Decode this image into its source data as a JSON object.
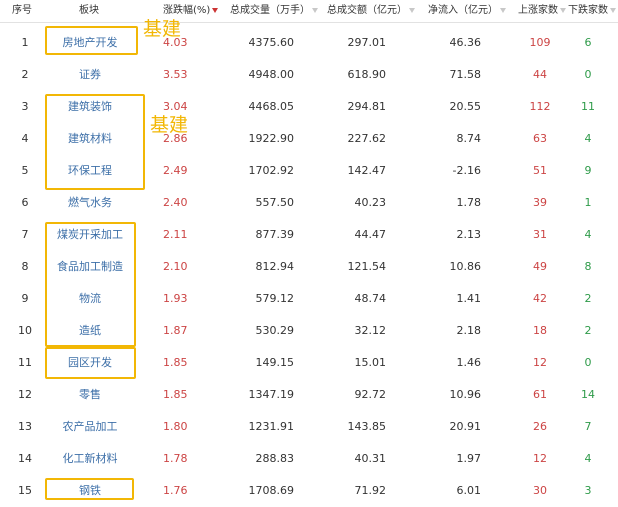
{
  "header": {
    "idx": "序号",
    "name": "板块",
    "chg": "涨跌幅(%)",
    "vol": "总成交量（万手）",
    "amt": "总成交额（亿元）",
    "flow": "净流入（亿元）",
    "up": "上涨家数",
    "down": "下跌家数"
  },
  "rows": [
    {
      "idx": "1",
      "name": "房地产开发",
      "chg": "4.03",
      "vol": "4375.60",
      "amt": "297.01",
      "flow": "46.36",
      "up": "109",
      "down": "6"
    },
    {
      "idx": "2",
      "name": "证券",
      "chg": "3.53",
      "vol": "4948.00",
      "amt": "618.90",
      "flow": "71.58",
      "up": "44",
      "down": "0"
    },
    {
      "idx": "3",
      "name": "建筑装饰",
      "chg": "3.04",
      "vol": "4468.05",
      "amt": "294.81",
      "flow": "20.55",
      "up": "112",
      "down": "11"
    },
    {
      "idx": "4",
      "name": "建筑材料",
      "chg": "2.86",
      "vol": "1922.90",
      "amt": "227.62",
      "flow": "8.74",
      "up": "63",
      "down": "4"
    },
    {
      "idx": "5",
      "name": "环保工程",
      "chg": "2.49",
      "vol": "1702.92",
      "amt": "142.47",
      "flow": "-2.16",
      "up": "51",
      "down": "9"
    },
    {
      "idx": "6",
      "name": "燃气水务",
      "chg": "2.40",
      "vol": "557.50",
      "amt": "40.23",
      "flow": "1.78",
      "up": "39",
      "down": "1"
    },
    {
      "idx": "7",
      "name": "煤炭开采加工",
      "chg": "2.11",
      "vol": "877.39",
      "amt": "44.47",
      "flow": "2.13",
      "up": "31",
      "down": "4"
    },
    {
      "idx": "8",
      "name": "食品加工制造",
      "chg": "2.10",
      "vol": "812.94",
      "amt": "121.54",
      "flow": "10.86",
      "up": "49",
      "down": "8"
    },
    {
      "idx": "9",
      "name": "物流",
      "chg": "1.93",
      "vol": "579.12",
      "amt": "48.74",
      "flow": "1.41",
      "up": "42",
      "down": "2"
    },
    {
      "idx": "10",
      "name": "造纸",
      "chg": "1.87",
      "vol": "530.29",
      "amt": "32.12",
      "flow": "2.18",
      "up": "18",
      "down": "2"
    },
    {
      "idx": "11",
      "name": "园区开发",
      "chg": "1.85",
      "vol": "149.15",
      "amt": "15.01",
      "flow": "1.46",
      "up": "12",
      "down": "0"
    },
    {
      "idx": "12",
      "name": "零售",
      "chg": "1.85",
      "vol": "1347.19",
      "amt": "92.72",
      "flow": "10.96",
      "up": "61",
      "down": "14"
    },
    {
      "idx": "13",
      "name": "农产品加工",
      "chg": "1.80",
      "vol": "1231.91",
      "amt": "143.85",
      "flow": "20.91",
      "up": "26",
      "down": "7"
    },
    {
      "idx": "14",
      "name": "化工新材料",
      "chg": "1.78",
      "vol": "288.83",
      "amt": "40.31",
      "flow": "1.97",
      "up": "12",
      "down": "4"
    },
    {
      "idx": "15",
      "name": "钢铁",
      "chg": "1.76",
      "vol": "1708.69",
      "amt": "71.92",
      "flow": "6.01",
      "up": "30",
      "down": "3"
    }
  ],
  "annotations": {
    "label_1": "基建",
    "label_2": "基建"
  },
  "colors": {
    "highlight": "#f2b705",
    "rise": "#cc4444",
    "fall": "#2f9b4a",
    "link": "#3d6fa8"
  }
}
